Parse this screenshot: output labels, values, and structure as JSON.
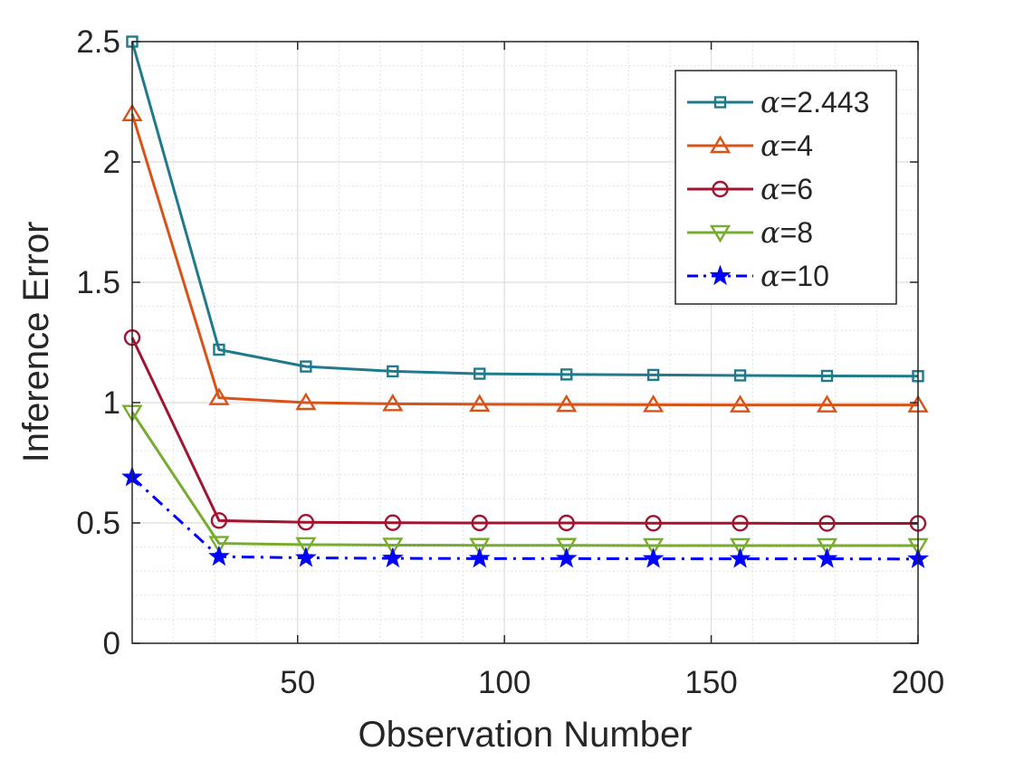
{
  "chart_data": {
    "type": "line",
    "title": "",
    "xlabel": "Observation Number",
    "ylabel": "Inference Error",
    "xlim": [
      10,
      200
    ],
    "ylim": [
      0,
      2.5
    ],
    "x_major_ticks": [
      50,
      100,
      150,
      200
    ],
    "x_tick_labels": [
      "50",
      "100",
      "150",
      "200"
    ],
    "y_major_ticks": [
      0,
      0.5,
      1,
      1.5,
      2,
      2.5
    ],
    "y_tick_labels": [
      "0",
      "0.5",
      "1",
      "1.5",
      "2",
      "2.5"
    ],
    "grid": true,
    "minor_grid": true,
    "legend_position": "top-right",
    "x": [
      10,
      31,
      52,
      73,
      94,
      115,
      136,
      157,
      178,
      200
    ],
    "series": [
      {
        "name": "α=2.443",
        "symbol": "α",
        "value_label": "=2.443",
        "color": "#1f7a8c",
        "marker": "square",
        "line_style": "solid",
        "values": [
          2.5,
          1.22,
          1.15,
          1.13,
          1.12,
          1.117,
          1.115,
          1.113,
          1.111,
          1.11
        ]
      },
      {
        "name": "α=4",
        "symbol": "α",
        "value_label": "=4",
        "color": "#d95319",
        "marker": "triangle-up",
        "line_style": "solid",
        "values": [
          2.2,
          1.02,
          1.0,
          0.995,
          0.993,
          0.992,
          0.991,
          0.99,
          0.99,
          0.99
        ]
      },
      {
        "name": "α=6",
        "symbol": "α",
        "value_label": "=6",
        "color": "#a2142f",
        "marker": "circle",
        "line_style": "solid",
        "values": [
          1.27,
          0.51,
          0.503,
          0.501,
          0.5,
          0.5,
          0.499,
          0.499,
          0.498,
          0.498
        ]
      },
      {
        "name": "α=8",
        "symbol": "α",
        "value_label": "=8",
        "color": "#77ac30",
        "marker": "triangle-down",
        "line_style": "solid",
        "values": [
          0.96,
          0.415,
          0.41,
          0.408,
          0.407,
          0.407,
          0.406,
          0.406,
          0.406,
          0.406
        ]
      },
      {
        "name": "α=10",
        "symbol": "α",
        "value_label": "=10",
        "color": "#0000ff",
        "marker": "star",
        "line_style": "dash-dot",
        "values": [
          0.69,
          0.36,
          0.355,
          0.353,
          0.352,
          0.352,
          0.351,
          0.351,
          0.351,
          0.35
        ]
      }
    ]
  }
}
